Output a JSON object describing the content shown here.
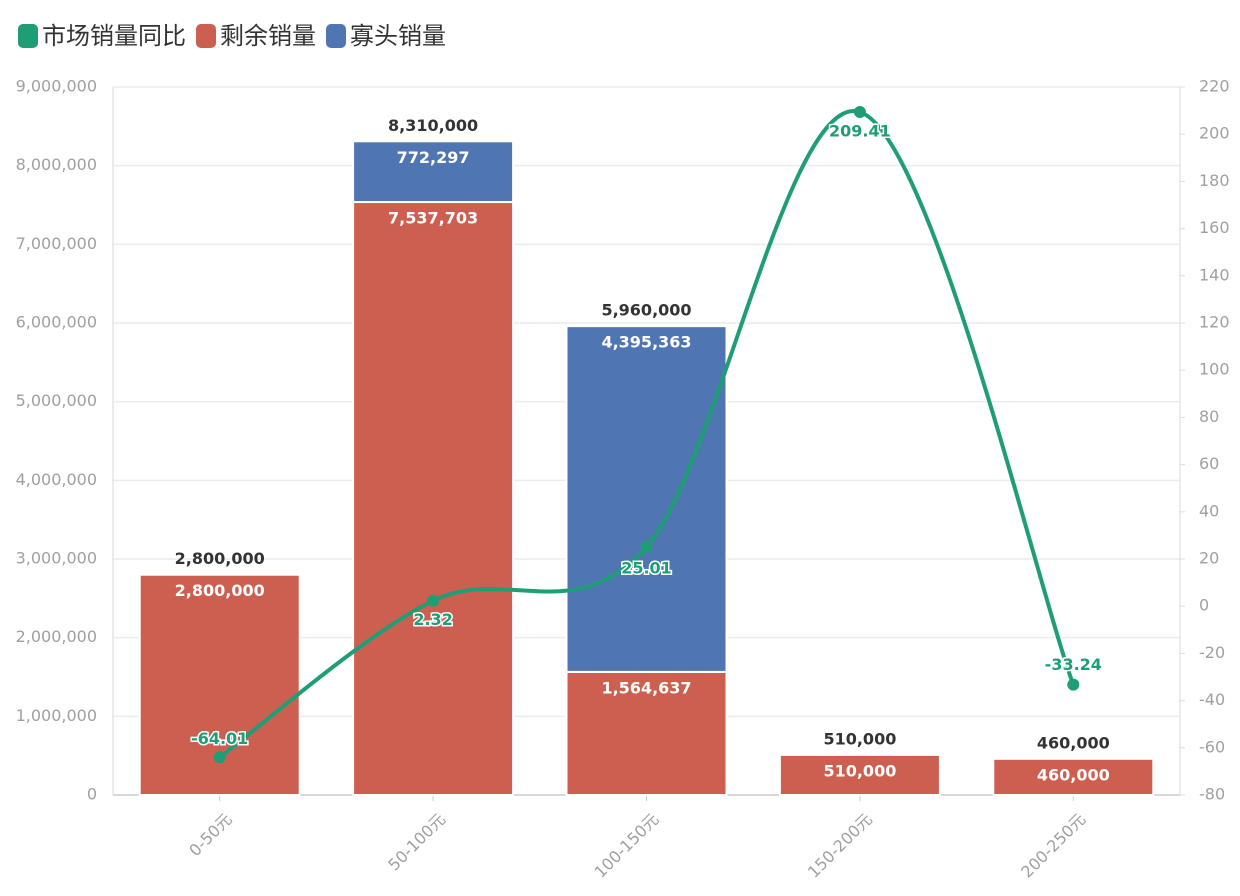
{
  "chart_data": {
    "type": "bar",
    "stacked": true,
    "categories": [
      "0-50元",
      "50-100元",
      "100-150元",
      "150-200元",
      "200-250元"
    ],
    "series": [
      {
        "name": "市场销量同比",
        "type": "line",
        "axis": "y2",
        "color": "#1f9e76",
        "values": [
          -64.01,
          2.32,
          25.01,
          209.41,
          -33.24
        ]
      },
      {
        "name": "剩余销量",
        "type": "bar",
        "color": "#cd5f51",
        "values": [
          2800000,
          7537703,
          1564637,
          510000,
          460000
        ],
        "value_labels": [
          "2,800,000",
          "7,537,703",
          "1,564,637",
          "510,000",
          "460,000"
        ]
      },
      {
        "name": "寡头销量",
        "type": "bar",
        "color": "#4f76b3",
        "values": [
          null,
          772297,
          4395363,
          null,
          null
        ],
        "value_labels": [
          null,
          "772,297",
          "4,395,363",
          null,
          null
        ]
      }
    ],
    "totals": {
      "values": [
        2800000,
        8310000,
        5960000,
        510000,
        460000
      ],
      "value_labels": [
        "2,800,000",
        "8,310,000",
        "5,960,000",
        "510,000",
        "460,000"
      ]
    },
    "ylim": [
      0,
      9000000
    ],
    "yticks": [
      0,
      {
        "value": 1000000,
        "label": "1,000,000"
      },
      {
        "value": 2000000,
        "label": "2,000,000"
      },
      {
        "value": 3000000,
        "label": "3,000,000"
      },
      {
        "value": 4000000,
        "label": "4,000,000"
      },
      {
        "value": 5000000,
        "label": "5,000,000"
      },
      {
        "value": 6000000,
        "label": "6,000,000"
      },
      {
        "value": 7000000,
        "label": "7,000,000"
      },
      {
        "value": 8000000,
        "label": "8,000,000"
      },
      {
        "value": 9000000,
        "label": "9,000,000"
      }
    ],
    "y2lim": [
      -80,
      220
    ],
    "y2ticks": [
      -80,
      -60,
      -40,
      -20,
      0,
      20,
      40,
      60,
      80,
      100,
      120,
      140,
      160,
      180,
      200,
      220
    ],
    "grid": true,
    "legend": "top-left"
  }
}
